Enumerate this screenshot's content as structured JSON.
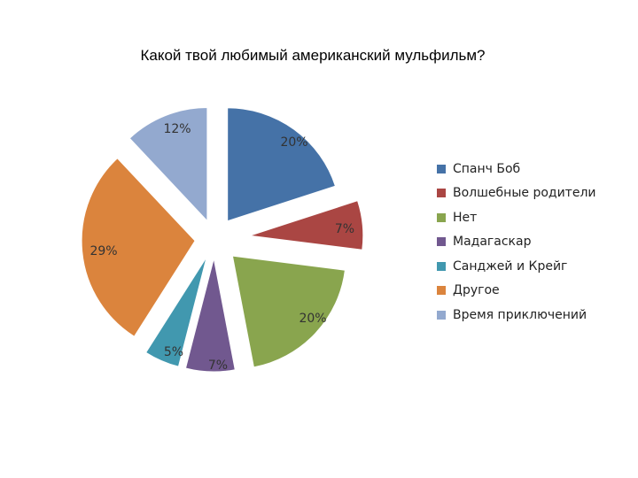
{
  "chart_data": {
    "type": "pie",
    "title": "Какой твой любимый американский мульфильм?",
    "categories": [
      "Спанч Боб",
      "Волшебные родители",
      "Нет",
      "Мадагаскар",
      "Санджей и Крейг",
      "Другое",
      "Время приключений"
    ],
    "values": [
      20,
      7,
      20,
      7,
      5,
      29,
      12
    ],
    "labels": [
      "20%",
      "7%",
      "20%",
      "7%",
      "5%",
      "29%",
      "12%"
    ],
    "unit": "%",
    "exploded": true,
    "legend_position": "right",
    "colors": [
      "#4572A7",
      "#AA4643",
      "#89A54E",
      "#71588F",
      "#4198AF",
      "#DB843D",
      "#93A9CF"
    ]
  }
}
